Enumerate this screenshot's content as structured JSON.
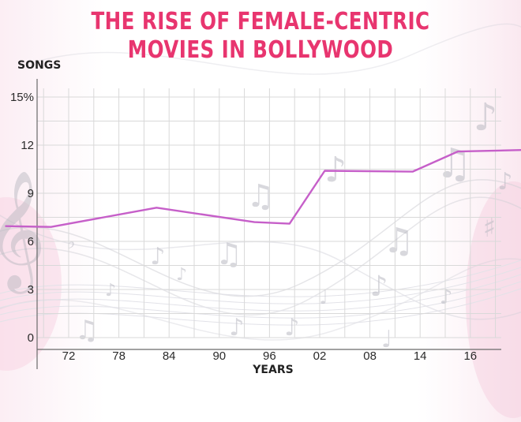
{
  "colors": {
    "title": "#e8356f",
    "line": "#c65fc9",
    "grid": "#d9d9d9",
    "axis": "#6a6a6a"
  },
  "chart_data": {
    "type": "line",
    "title_lines": [
      "THE RISE OF FEMALE-CENTRIC",
      "MOVIES IN BOLLYWOOD"
    ],
    "ylabel": "SONGS",
    "xlabel": "YEARS",
    "x_ticks": [
      "72",
      "78",
      "84",
      "90",
      "96",
      "02",
      "08",
      "14",
      "16"
    ],
    "y_ticks": [
      "0",
      "3",
      "6",
      "9",
      "12",
      "15%"
    ],
    "y_tick_values": [
      0,
      3,
      6,
      9,
      12,
      15
    ],
    "ylim": [
      -2,
      15.5
    ],
    "grid": true,
    "legend": "none",
    "series": [
      {
        "x_positions": [
          -1.25,
          -0.35,
          1.75,
          3.7,
          4.4,
          5.1,
          6.85,
          7.75,
          9.1
        ],
        "values": [
          6.95,
          6.9,
          8.1,
          7.2,
          7.1,
          10.4,
          10.35,
          11.6,
          11.7
        ]
      }
    ]
  }
}
